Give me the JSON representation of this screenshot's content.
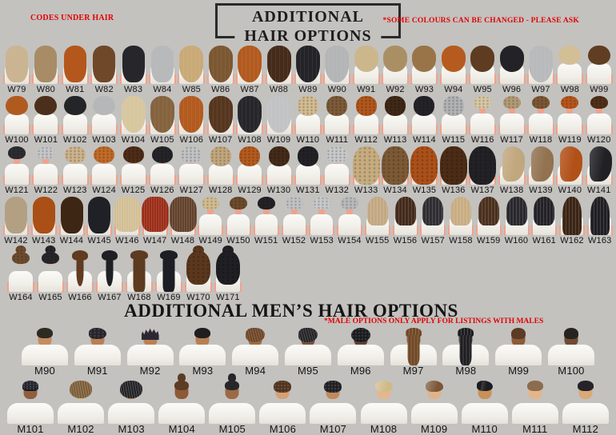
{
  "page": {
    "bg": "#c3c2bf",
    "accent_red": "#e30202",
    "skin_default": "#f0a28b",
    "top_left_note": "CODES UNDER HAIR",
    "title_line1": "ADDITIONAL",
    "title_line2": "HAIR OPTIONS",
    "top_right_note": "*SOME COLOURS CAN BE CHANGED - PLEASE ASK",
    "mens_title": "ADDITIONAL MEN’S HAIR OPTIONS",
    "mens_note": "*MALE OPTIONS  ONLY APPLY FOR LISTINGS WITH MALES"
  },
  "rows": [
    {
      "name": "women-row-1",
      "gender": "w",
      "figures": [
        {
          "code": "W79",
          "style": "long",
          "hair": "#cbb491"
        },
        {
          "code": "W80",
          "style": "long",
          "hair": "#a78c66"
        },
        {
          "code": "W81",
          "style": "long",
          "hair": "#b4571d"
        },
        {
          "code": "W82",
          "style": "long",
          "hair": "#6f482a"
        },
        {
          "code": "W83",
          "style": "long",
          "hair": "#26262b"
        },
        {
          "code": "W84",
          "style": "long",
          "hair": "#b8b9bb"
        },
        {
          "code": "W85",
          "style": "wavy",
          "hair": "#c9aa77"
        },
        {
          "code": "W86",
          "style": "wavy",
          "hair": "#7b5732"
        },
        {
          "code": "W87",
          "style": "wavy",
          "hair": "#b25a1e"
        },
        {
          "code": "W88",
          "style": "wavy",
          "hair": "#452b1a"
        },
        {
          "code": "W89",
          "style": "wavy",
          "hair": "#232328"
        },
        {
          "code": "W90",
          "style": "wavy",
          "hair": "#b4b5b7"
        },
        {
          "code": "W91",
          "style": "mid",
          "hair": "#ccb68c"
        },
        {
          "code": "W92",
          "style": "mid",
          "hair": "#ab8f64"
        },
        {
          "code": "W93",
          "style": "mid",
          "hair": "#997449"
        },
        {
          "code": "W94",
          "style": "mid",
          "hair": "#b65b1f"
        },
        {
          "code": "W95",
          "style": "mid",
          "hair": "#5e3c21"
        },
        {
          "code": "W96",
          "style": "mid",
          "hair": "#232327"
        },
        {
          "code": "W97",
          "style": "wavy",
          "hair": "#b9babc"
        },
        {
          "code": "W98",
          "style": "shortw",
          "hair": "#d3bf96"
        },
        {
          "code": "W99",
          "style": "shortw",
          "hair": "#5f3e23"
        }
      ]
    },
    {
      "name": "women-row-2",
      "gender": "w",
      "figures": [
        {
          "code": "W100",
          "style": "shortw",
          "hair": "#b15a20"
        },
        {
          "code": "W101",
          "style": "shortw",
          "hair": "#4b2e1b"
        },
        {
          "code": "W102",
          "style": "shortw",
          "hair": "#242529"
        },
        {
          "code": "W103",
          "style": "shortw",
          "hair": "#b6b7b9"
        },
        {
          "code": "W104",
          "style": "wavy",
          "hair": "#d8c79f"
        },
        {
          "code": "W105",
          "style": "wavy",
          "hair": "#85633e"
        },
        {
          "code": "W106",
          "style": "wavy",
          "hair": "#b35b1f"
        },
        {
          "code": "W107",
          "style": "wavy",
          "hair": "#56361e"
        },
        {
          "code": "W108",
          "style": "wavy",
          "hair": "#27272b"
        },
        {
          "code": "W109",
          "style": "wavy",
          "hair": "#c2c3c5"
        },
        {
          "code": "W110",
          "style": "afrotall",
          "hair": "#d2bc91"
        },
        {
          "code": "W111",
          "style": "afrotall",
          "hair": "#7d5b39"
        },
        {
          "code": "W112",
          "style": "afrotall",
          "hair": "#b1571d"
        },
        {
          "code": "W113",
          "style": "afrotall",
          "hair": "#402817"
        },
        {
          "code": "W114",
          "style": "afrotall",
          "hair": "#242428"
        },
        {
          "code": "W115",
          "style": "afrotall",
          "hair": "#b2b3b5"
        },
        {
          "code": "W116",
          "style": "crop",
          "hair": "#d5c7a4"
        },
        {
          "code": "W117",
          "style": "crop",
          "hair": "#b29a76"
        },
        {
          "code": "W118",
          "style": "crop",
          "hair": "#7c5734"
        },
        {
          "code": "W119",
          "style": "crop",
          "hair": "#b6551b"
        },
        {
          "code": "W120",
          "style": "crop",
          "hair": "#4f3019"
        }
      ]
    },
    {
      "name": "women-row-3",
      "gender": "w",
      "figures": [
        {
          "code": "W121",
          "style": "crop",
          "hair": "#2d2d31"
        },
        {
          "code": "W122",
          "style": "crop",
          "hair": "#c5c6c8"
        },
        {
          "code": "W123",
          "style": "afro",
          "hair": "#ccb38d"
        },
        {
          "code": "W124",
          "style": "afro",
          "hair": "#c16b29"
        },
        {
          "code": "W125",
          "style": "afro",
          "hair": "#4d2d18"
        },
        {
          "code": "W126",
          "style": "afro",
          "hair": "#252529"
        },
        {
          "code": "W127",
          "style": "afro",
          "hair": "#c2c3c5"
        },
        {
          "code": "W128",
          "style": "afrotall",
          "hair": "#c2a77e"
        },
        {
          "code": "W129",
          "style": "afrotall",
          "hair": "#b55b1f"
        },
        {
          "code": "W130",
          "style": "afrotall",
          "hair": "#442b19"
        },
        {
          "code": "W131",
          "style": "afrotall",
          "hair": "#222226"
        },
        {
          "code": "W132",
          "style": "afro",
          "hair": "#c8c9ca"
        },
        {
          "code": "W133",
          "style": "bigcurl",
          "hair": "#c6ac7e"
        },
        {
          "code": "W134",
          "style": "bigcurl",
          "hair": "#7c5935"
        },
        {
          "code": "W135",
          "style": "bigcurl",
          "hair": "#aa5019"
        },
        {
          "code": "W136",
          "style": "bigcurl",
          "hair": "#4b2c16"
        },
        {
          "code": "W137",
          "style": "bigcurl",
          "hair": "#222226"
        },
        {
          "code": "W138",
          "style": "sweep",
          "hair": "#c1a77d"
        },
        {
          "code": "W139",
          "style": "sweep",
          "hair": "#927250"
        },
        {
          "code": "W140",
          "style": "sweep",
          "hair": "#b15017"
        },
        {
          "code": "W141",
          "style": "sweep",
          "hair": "#212125"
        }
      ]
    },
    {
      "name": "women-row-4",
      "gender": "w",
      "figures": [
        {
          "code": "W142",
          "style": "long",
          "hair": "#b3a083"
        },
        {
          "code": "W143",
          "style": "long",
          "hair": "#aa4f15"
        },
        {
          "code": "W144",
          "style": "long",
          "hair": "#3d2614"
        },
        {
          "code": "W145",
          "style": "long",
          "hair": "#202127"
        },
        {
          "code": "W146",
          "style": "crimped",
          "hair": "#d2bf95"
        },
        {
          "code": "W147",
          "style": "crimped",
          "hair": "#9a2d18"
        },
        {
          "code": "W148",
          "style": "crimped",
          "hair": "#62422b"
        },
        {
          "code": "W149",
          "style": "crop",
          "hair": "#d1bc91"
        },
        {
          "code": "W150",
          "style": "crop",
          "hair": "#6c4b2d"
        },
        {
          "code": "W151",
          "style": "crop",
          "hair": "#232327"
        },
        {
          "code": "W152",
          "style": "crop",
          "hair": "#c1c2c4"
        },
        {
          "code": "W153",
          "style": "crop",
          "hair": "#c7c8ca"
        },
        {
          "code": "W154",
          "style": "crop",
          "hair": "#b8b9bb"
        },
        {
          "code": "W155",
          "style": "braidm",
          "hair": "#c3a882"
        },
        {
          "code": "W156",
          "style": "braidm",
          "hair": "#432a1b"
        },
        {
          "code": "W157",
          "style": "braidm",
          "hair": "#2f2f33"
        },
        {
          "code": "W158",
          "style": "braidm",
          "hair": "#c8ad84"
        },
        {
          "code": "W159",
          "style": "braidm",
          "hair": "#4b301d"
        },
        {
          "code": "W160",
          "style": "braidm",
          "hair": "#29292d"
        },
        {
          "code": "W161",
          "style": "braidm",
          "hair": "#232327"
        },
        {
          "code": "W162",
          "style": "braidlong",
          "hair": "#3b2515"
        },
        {
          "code": "W163",
          "style": "braidlong",
          "hair": "#202024"
        }
      ]
    },
    {
      "name": "women-row-5",
      "gender": "w",
      "figures": [
        {
          "code": "W164",
          "style": "bun",
          "hair": "#6c4b2f"
        },
        {
          "code": "W165",
          "style": "bun",
          "hair": "#27272b"
        },
        {
          "code": "W166",
          "style": "pony",
          "hair": "#603b20"
        },
        {
          "code": "W167",
          "style": "pony",
          "hair": "#1f2025"
        },
        {
          "code": "W168",
          "style": "spony",
          "hair": "#5c3b21"
        },
        {
          "code": "W169",
          "style": "spony",
          "hair": "#1d1e23"
        },
        {
          "code": "W170",
          "style": "halfup",
          "hair": "#5a371d"
        },
        {
          "code": "W171",
          "style": "halfup",
          "hair": "#1f1f24"
        }
      ]
    },
    {
      "name": "men-row-1",
      "gender": "m",
      "figures": [
        {
          "code": "M90",
          "style": "mshort",
          "hair": "#2e2b22",
          "skin": "#c78c60"
        },
        {
          "code": "M91",
          "style": "mmessy",
          "hair": "#25252b",
          "skin": "#ba7f55"
        },
        {
          "code": "M92",
          "style": "mspiky",
          "hair": "#2b2834",
          "skin": "#bb8156"
        },
        {
          "code": "M93",
          "style": "mshort",
          "hair": "#1f1e21",
          "skin": "#b97f54"
        },
        {
          "code": "M94",
          "style": "mdreadbun",
          "hair": "#6c4627",
          "skin": "#a06b42"
        },
        {
          "code": "M95",
          "style": "mdreadbun",
          "hair": "#242327",
          "skin": "#77503a"
        },
        {
          "code": "M96",
          "style": "mafro",
          "hair": "#1a1b1f",
          "skin": "#5f4130"
        },
        {
          "code": "M97",
          "style": "mbraids",
          "hair": "#704825",
          "skin": "#8d5f3e"
        },
        {
          "code": "M98",
          "style": "mbraids",
          "hair": "#1e1e22",
          "skin": "#6e4832"
        },
        {
          "code": "M99",
          "style": "mfade",
          "hair": "#5b3b23",
          "skin": "#8d5b36"
        },
        {
          "code": "M100",
          "style": "mfade",
          "hair": "#272420",
          "skin": "#714b31"
        }
      ]
    },
    {
      "name": "men-row-2",
      "gender": "m",
      "figures": [
        {
          "code": "M101",
          "style": "mdurag",
          "hair": "#23242d",
          "skin": "#8d5f3e"
        },
        {
          "code": "M102",
          "style": "mdreads",
          "hair": "#7b5c37",
          "skin": "#d9a97c"
        },
        {
          "code": "M103",
          "style": "mdreads",
          "hair": "#212125",
          "skin": "#aa774e"
        },
        {
          "code": "M104",
          "style": "mtopknot",
          "hair": "#5c3c23",
          "skin": "#8d5a35"
        },
        {
          "code": "M105",
          "style": "mtopknot",
          "hair": "#27272b",
          "skin": "#9c6a44"
        },
        {
          "code": "M106",
          "style": "mcurlytop",
          "hair": "#50321e",
          "skin": "#d4a173"
        },
        {
          "code": "M107",
          "style": "mcurlytop",
          "hair": "#1f1f23",
          "skin": "#c08a5b"
        },
        {
          "code": "M108",
          "style": "msweep",
          "hair": "#cfba88",
          "skin": "#e4b78c"
        },
        {
          "code": "M109",
          "style": "msweep",
          "hair": "#7b5738",
          "skin": "#e1b388"
        },
        {
          "code": "M110",
          "style": "msidepart",
          "hair": "#1d1d21",
          "skin": "#c99158"
        },
        {
          "code": "M111",
          "style": "mshort",
          "hair": "#8b6c4e",
          "skin": "#e3b68a"
        },
        {
          "code": "M112",
          "style": "mshort",
          "hair": "#242327",
          "skin": "#d9a978"
        }
      ]
    }
  ]
}
